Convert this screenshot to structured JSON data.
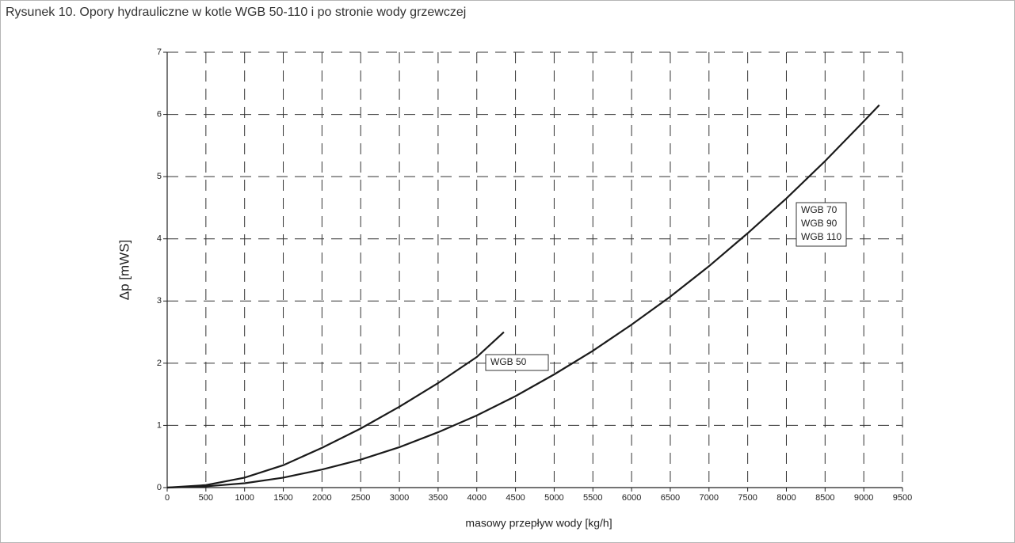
{
  "chart_data": {
    "type": "line",
    "title": "Rysunek 10. Opory hydrauliczne w kotle WGB 50-110 i po stronie wody grzewczej",
    "x_label": "masowy przepływ wody [kg/h]",
    "y_label": "Δp [mWS]",
    "xlim": [
      0,
      9500
    ],
    "ylim": [
      0,
      7
    ],
    "xticks": [
      0,
      500,
      1000,
      1500,
      2000,
      2500,
      3000,
      3500,
      4000,
      4500,
      5000,
      5500,
      6000,
      6500,
      7000,
      7500,
      8000,
      8500,
      9000,
      9500
    ],
    "yticks": [
      0,
      1,
      2,
      3,
      4,
      5,
      6,
      7
    ],
    "grid": true,
    "series": [
      {
        "color": "#1a1a1a",
        "x": [
          0,
          500,
          1000,
          1500,
          2000,
          2500,
          3000,
          3500,
          4000,
          4350
        ],
        "values": [
          0,
          0.04,
          0.16,
          0.36,
          0.64,
          0.95,
          1.3,
          1.68,
          2.1,
          2.5
        ]
      },
      {
        "color": "#1a1a1a",
        "x": [
          0,
          500,
          1000,
          1500,
          2000,
          2500,
          3000,
          3500,
          4000,
          4500,
          5000,
          5500,
          6000,
          6500,
          7000,
          7500,
          8000,
          8500,
          9000,
          9200
        ],
        "values": [
          0,
          0.02,
          0.07,
          0.16,
          0.29,
          0.45,
          0.65,
          0.89,
          1.16,
          1.47,
          1.82,
          2.2,
          2.62,
          3.07,
          3.56,
          4.09,
          4.65,
          5.25,
          5.89,
          6.15
        ]
      }
    ],
    "annotations": [
      {
        "lines": [
          "WGB 50"
        ]
      },
      {
        "lines": [
          "WGB 70",
          "WGB 90",
          "WGB 110"
        ]
      }
    ]
  }
}
